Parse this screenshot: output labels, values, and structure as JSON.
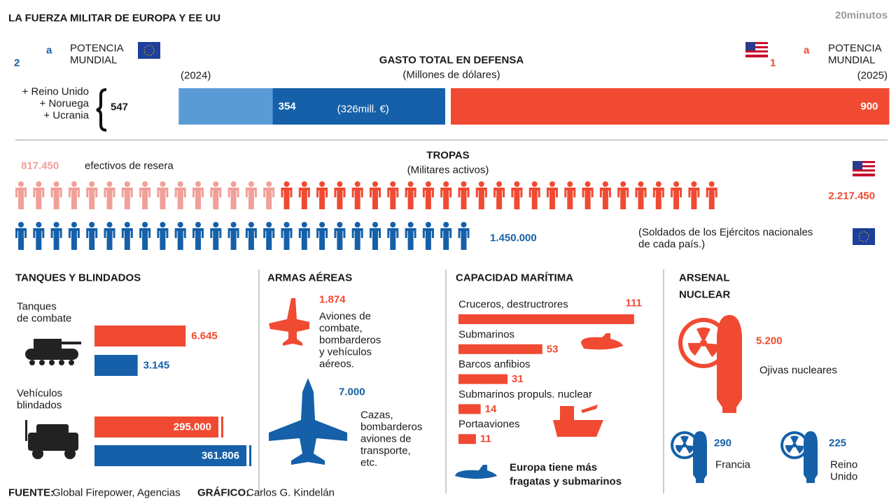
{
  "header": {
    "title": "LA FUERZA MILITAR DE EUROPA Y EE UU",
    "brand": "20minutos"
  },
  "defense": {
    "title": "GASTO TOTAL EN DEFENSA",
    "subtitle": "(Millones de dólares)",
    "europe": {
      "rank": "2",
      "rank_sup": "a",
      "rank_label": [
        "POTENCIA",
        "MUNDIAL"
      ],
      "year": "(2024)",
      "extras": [
        "+ Reino Unido",
        "+ Noruega",
        "+ Ucrania"
      ],
      "total": 547,
      "value": 354,
      "note": "(326mill. €)"
    },
    "usa": {
      "rank": "1",
      "rank_sup": "a",
      "rank_label": [
        "POTENCIA",
        "MUNDIAL"
      ],
      "year": "(2025)",
      "value": 900
    }
  },
  "troops": {
    "title": "TROPAS",
    "subtitle": "(Militares activos)",
    "reserve": {
      "value": 817450,
      "label": "817.450",
      "text": "efectivos de resera"
    },
    "usa": {
      "value": 2217450,
      "label": "2.217.450"
    },
    "europe": {
      "value": 1450000,
      "label": "1.450.000",
      "note": [
        "(Soldados de los Ejércitos nacionales",
        "de cada país.)"
      ]
    }
  },
  "tanks": {
    "title": "TANQUES Y BLINDADOS",
    "items": [
      {
        "name": [
          "Tanques",
          "de combate"
        ],
        "values": [
          {
            "value": 6645,
            "label": "6.645"
          },
          {
            "value": 3145,
            "label": "3.145"
          }
        ]
      },
      {
        "name": [
          "Vehículos",
          "blindados"
        ],
        "values": [
          {
            "value": 295000,
            "label": "295.000"
          },
          {
            "value": 361806,
            "label": "361.806"
          }
        ]
      }
    ]
  },
  "air": {
    "title": "ARMAS AÉREAS",
    "combat": {
      "value": 1874,
      "label": "1.874",
      "lines": [
        "Aviones de",
        "combate,",
        "bombarderos",
        "y vehículos",
        "aéreos."
      ]
    },
    "jets": {
      "value": 7000,
      "label": "7.000",
      "lines": [
        "Cazas,",
        "bombarderos",
        "aviones de",
        "transporte,",
        "etc."
      ]
    }
  },
  "naval": {
    "title": "CAPACIDAD MARÍTIMA",
    "items": [
      {
        "name": "Cruceros, destructrores",
        "value": 111
      },
      {
        "name": "Submarinos",
        "value": 53
      },
      {
        "name": "Barcos anfibios",
        "value": 31
      },
      {
        "name": "Submarinos propuls. nuclear",
        "value": 14
      },
      {
        "name": "Portaaviones",
        "value": 11
      }
    ],
    "note": [
      "Europa tiene más",
      "fragatas y submarinos"
    ]
  },
  "nuclear": {
    "title": [
      "ARSENAL",
      "NUCLEAR"
    ],
    "total": {
      "value": 5200,
      "label": "5.200",
      "text": "Ojivas nucleares"
    },
    "countries": [
      {
        "value": 290,
        "name": [
          "Francia"
        ]
      },
      {
        "value": 225,
        "name": [
          "Reino",
          "Unido"
        ]
      }
    ]
  },
  "footer": {
    "source_label": "FUENTE:",
    "source": "Global Firepower, Agencias",
    "credit_label": "GRÁFICO:",
    "credit": "Carlos G. Kindelán"
  }
}
